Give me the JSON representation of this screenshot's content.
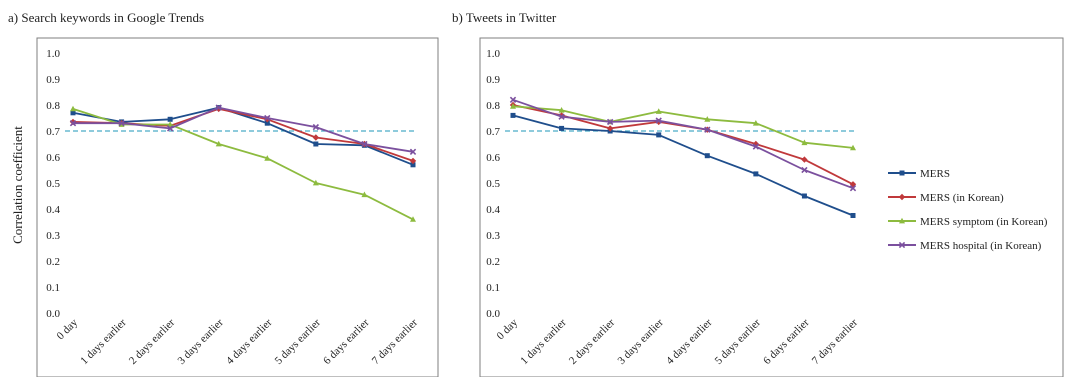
{
  "colors": {
    "MERS": "#1f4e8c",
    "MERS (in Korean)": "#c0393b",
    "MERS symptom (in Korean)": "#8dbb3f",
    "MERS hospital (in Korean)": "#7b509e",
    "threshold": "#4bacc6",
    "frame": "#7f7f7f"
  },
  "ylabel": "Correlation coefficient",
  "chart_data": [
    {
      "type": "line",
      "title": "a) Search keywords in Google Trends",
      "categories": [
        "0 day",
        "1 days earlier",
        "2 days earlier",
        "3 days earlier",
        "4 days earlier",
        "5 days earlier",
        "6 days earlier",
        "7 days earlier"
      ],
      "ylim": [
        0,
        1.0
      ],
      "yticks": [
        "0.0",
        "0.1",
        "0.2",
        "0.3",
        "0.4",
        "0.5",
        "0.6",
        "0.7",
        "0.8",
        "0.9",
        "1.0"
      ],
      "reference_line": 0.7,
      "series": [
        {
          "name": "MERS",
          "marker": "square",
          "values": [
            0.77,
            0.735,
            0.745,
            0.79,
            0.73,
            0.65,
            0.645,
            0.57
          ]
        },
        {
          "name": "MERS (in Korean)",
          "marker": "diamond",
          "values": [
            0.735,
            0.73,
            0.72,
            0.785,
            0.745,
            0.675,
            0.65,
            0.585
          ]
        },
        {
          "name": "MERS symptom (in Korean)",
          "marker": "triangle",
          "values": [
            0.785,
            0.725,
            0.725,
            0.65,
            0.595,
            0.5,
            0.455,
            0.36
          ]
        },
        {
          "name": "MERS hospital (in Korean)",
          "marker": "x",
          "values": [
            0.73,
            0.73,
            0.71,
            0.79,
            0.75,
            0.715,
            0.65,
            0.62
          ]
        }
      ]
    },
    {
      "type": "line",
      "title": "b) Tweets in Twitter",
      "categories": [
        "0 day",
        "1 days earlier",
        "2 days earlier",
        "3 days earlier",
        "4 days earlier",
        "5 days earlier",
        "6 days earlier",
        "7 days earlier"
      ],
      "ylim": [
        0,
        1.0
      ],
      "yticks": [
        "0.0",
        "0.1",
        "0.2",
        "0.3",
        "0.4",
        "0.5",
        "0.6",
        "0.7",
        "0.8",
        "0.9",
        "1.0"
      ],
      "reference_line": 0.7,
      "series": [
        {
          "name": "MERS",
          "marker": "square",
          "values": [
            0.76,
            0.71,
            0.7,
            0.685,
            0.605,
            0.535,
            0.45,
            0.375
          ]
        },
        {
          "name": "MERS (in Korean)",
          "marker": "diamond",
          "values": [
            0.8,
            0.76,
            0.71,
            0.735,
            0.705,
            0.65,
            0.59,
            0.495
          ]
        },
        {
          "name": "MERS symptom (in Korean)",
          "marker": "triangle",
          "values": [
            0.795,
            0.78,
            0.735,
            0.775,
            0.745,
            0.73,
            0.655,
            0.635
          ]
        },
        {
          "name": "MERS hospital (in Korean)",
          "marker": "x",
          "values": [
            0.82,
            0.755,
            0.735,
            0.74,
            0.705,
            0.64,
            0.55,
            0.48
          ]
        }
      ]
    }
  ],
  "legend": {
    "placement": "right",
    "entries": [
      "MERS",
      "MERS (in Korean)",
      "MERS symptom (in Korean)",
      "MERS hospital (in Korean)"
    ]
  }
}
